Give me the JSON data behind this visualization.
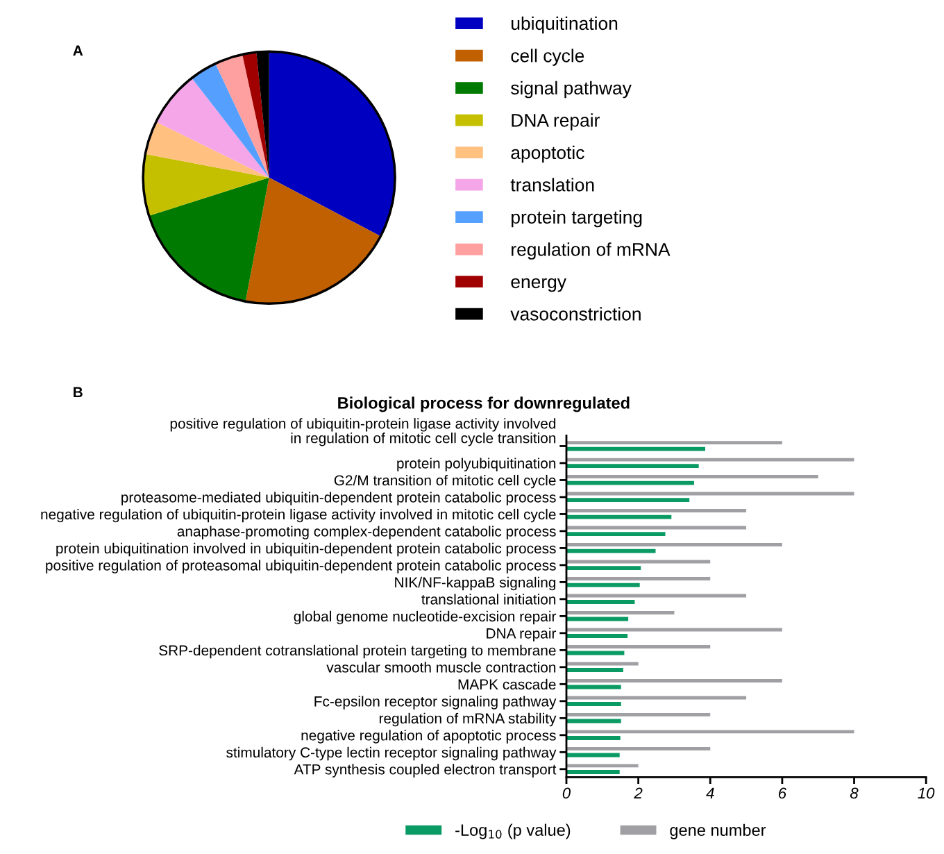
{
  "chart_data": [
    {
      "type": "pie",
      "annotations": [
        "A"
      ],
      "legend": "right",
      "categories": [
        "ubiquitination",
        "cell cycle",
        "signal pathway",
        "DNA repair",
        "apoptotic",
        "translation",
        "protein targeting",
        "regulation of mRNA",
        "energy",
        "vasoconstriction"
      ],
      "values": [
        32.7,
        20.3,
        17.1,
        7.9,
        4.3,
        7.2,
        3.5,
        3.6,
        1.8,
        1.6
      ],
      "colors": [
        "#0000c0",
        "#c06000",
        "#007a00",
        "#c4c000",
        "#ffc080",
        "#f4a6e8",
        "#55a0ff",
        "#ffa0a0",
        "#a00000",
        "#000000"
      ]
    },
    {
      "type": "bar",
      "orientation": "horizontal",
      "title": "Biological process for downregulated",
      "annotations": [
        "B"
      ],
      "legend": "bottom",
      "grid": false,
      "categories": [
        "positive regulation of ubiquitin-protein ligase activity involved\nin regulation of mitotic cell cycle transition",
        "protein polyubiquitination",
        "G2/M transition of mitotic cell cycle",
        "proteasome-mediated ubiquitin-dependent protein catabolic process",
        "negative regulation of ubiquitin-protein ligase activity involved in mitotic cell cycle",
        "anaphase-promoting complex-dependent catabolic process",
        "protein ubiquitination involved in ubiquitin-dependent protein catabolic process",
        "positive regulation of proteasomal ubiquitin-dependent protein catabolic process",
        "NIK/NF-kappaB signaling",
        "translational initiation",
        "global genome nucleotide-excision repair",
        "DNA repair",
        "SRP-dependent cotranslational protein targeting to membrane",
        "vascular smooth muscle contraction",
        "MAPK cascade",
        "Fc-epsilon receptor signaling pathway",
        "regulation of mRNA stability",
        "negative regulation of apoptotic process",
        "stimulatory C-type lectin receptor signaling pathway",
        "ATP synthesis coupled electron transport"
      ],
      "series": [
        {
          "name": "-Log$_{10}$ (p value)",
          "color": "#0a9a64",
          "values": [
            3.86,
            3.68,
            3.55,
            3.42,
            2.92,
            2.75,
            2.48,
            2.07,
            2.04,
            1.9,
            1.72,
            1.7,
            1.61,
            1.58,
            1.52,
            1.52,
            1.52,
            1.5,
            1.48,
            1.48
          ]
        },
        {
          "name": "gene number",
          "color": "#a0a0a4",
          "values": [
            6,
            8,
            7,
            8,
            5,
            5,
            6,
            4,
            4,
            5,
            3,
            6,
            4,
            2,
            6,
            5,
            4,
            8,
            4,
            2
          ]
        }
      ],
      "xlim": [
        0,
        10
      ],
      "xticks": [
        0,
        2,
        4,
        6,
        8,
        10
      ]
    }
  ]
}
